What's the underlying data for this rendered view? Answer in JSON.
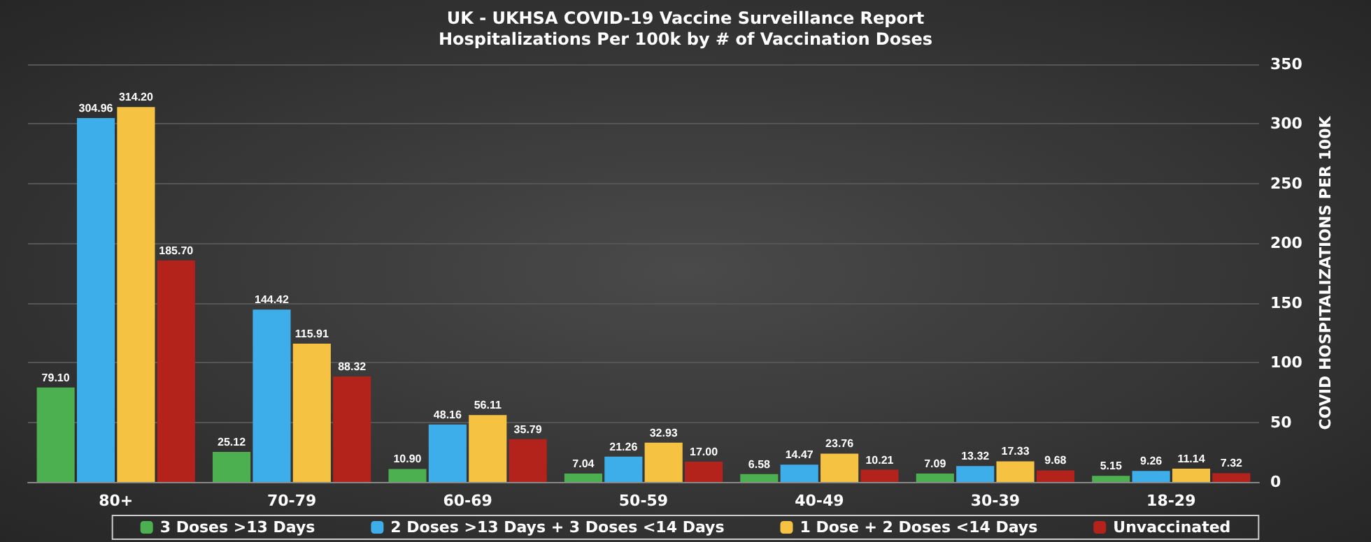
{
  "chart_data": {
    "type": "bar",
    "title": "UK - UKHSA COVID-19 Vaccine Surveillance Report",
    "subtitle": "Hospitalizations Per 100k by # of Vaccination Doses",
    "ylabel": "COVID HOSPITALIZATIONS PER 100K",
    "categories": [
      "80+",
      "70-79",
      "60-69",
      "50-59",
      "40-49",
      "30-39",
      "18-29"
    ],
    "series": [
      {
        "name": "3 Doses >13 Days",
        "color": "#4caf50",
        "values": [
          79.1,
          25.12,
          10.9,
          7.04,
          6.58,
          7.09,
          5.15
        ],
        "value_labels": [
          "79.10",
          "25.12",
          "10.90",
          "7.04",
          "6.58",
          "7.09",
          "5.15"
        ]
      },
      {
        "name": "2 Doses >13 Days + 3 Doses <14 Days",
        "color": "#3daee9",
        "values": [
          304.96,
          144.42,
          48.16,
          21.26,
          14.47,
          13.32,
          9.26
        ],
        "value_labels": [
          "304.96",
          "144.42",
          "48.16",
          "21.26",
          "14.47",
          "13.32",
          "9.26"
        ]
      },
      {
        "name": "1 Dose + 2 Doses <14 Days",
        "color": "#f5c242",
        "values": [
          314.2,
          115.91,
          56.11,
          32.93,
          23.76,
          17.33,
          11.14
        ],
        "value_labels": [
          "314.20",
          "115.91",
          "56.11",
          "32.93",
          "23.76",
          "17.33",
          "11.14"
        ]
      },
      {
        "name": "Unvaccinated",
        "color": "#b3221b",
        "values": [
          185.7,
          88.32,
          35.79,
          17.0,
          10.21,
          9.68,
          7.32
        ],
        "value_labels": [
          "185.70",
          "88.32",
          "35.79",
          "17.00",
          "10.21",
          "9.68",
          "7.32"
        ]
      }
    ],
    "ylim": [
      0,
      350
    ],
    "yticks": [
      0,
      50,
      100,
      150,
      200,
      250,
      300,
      350
    ],
    "grid": "y",
    "legend": "bottom"
  }
}
